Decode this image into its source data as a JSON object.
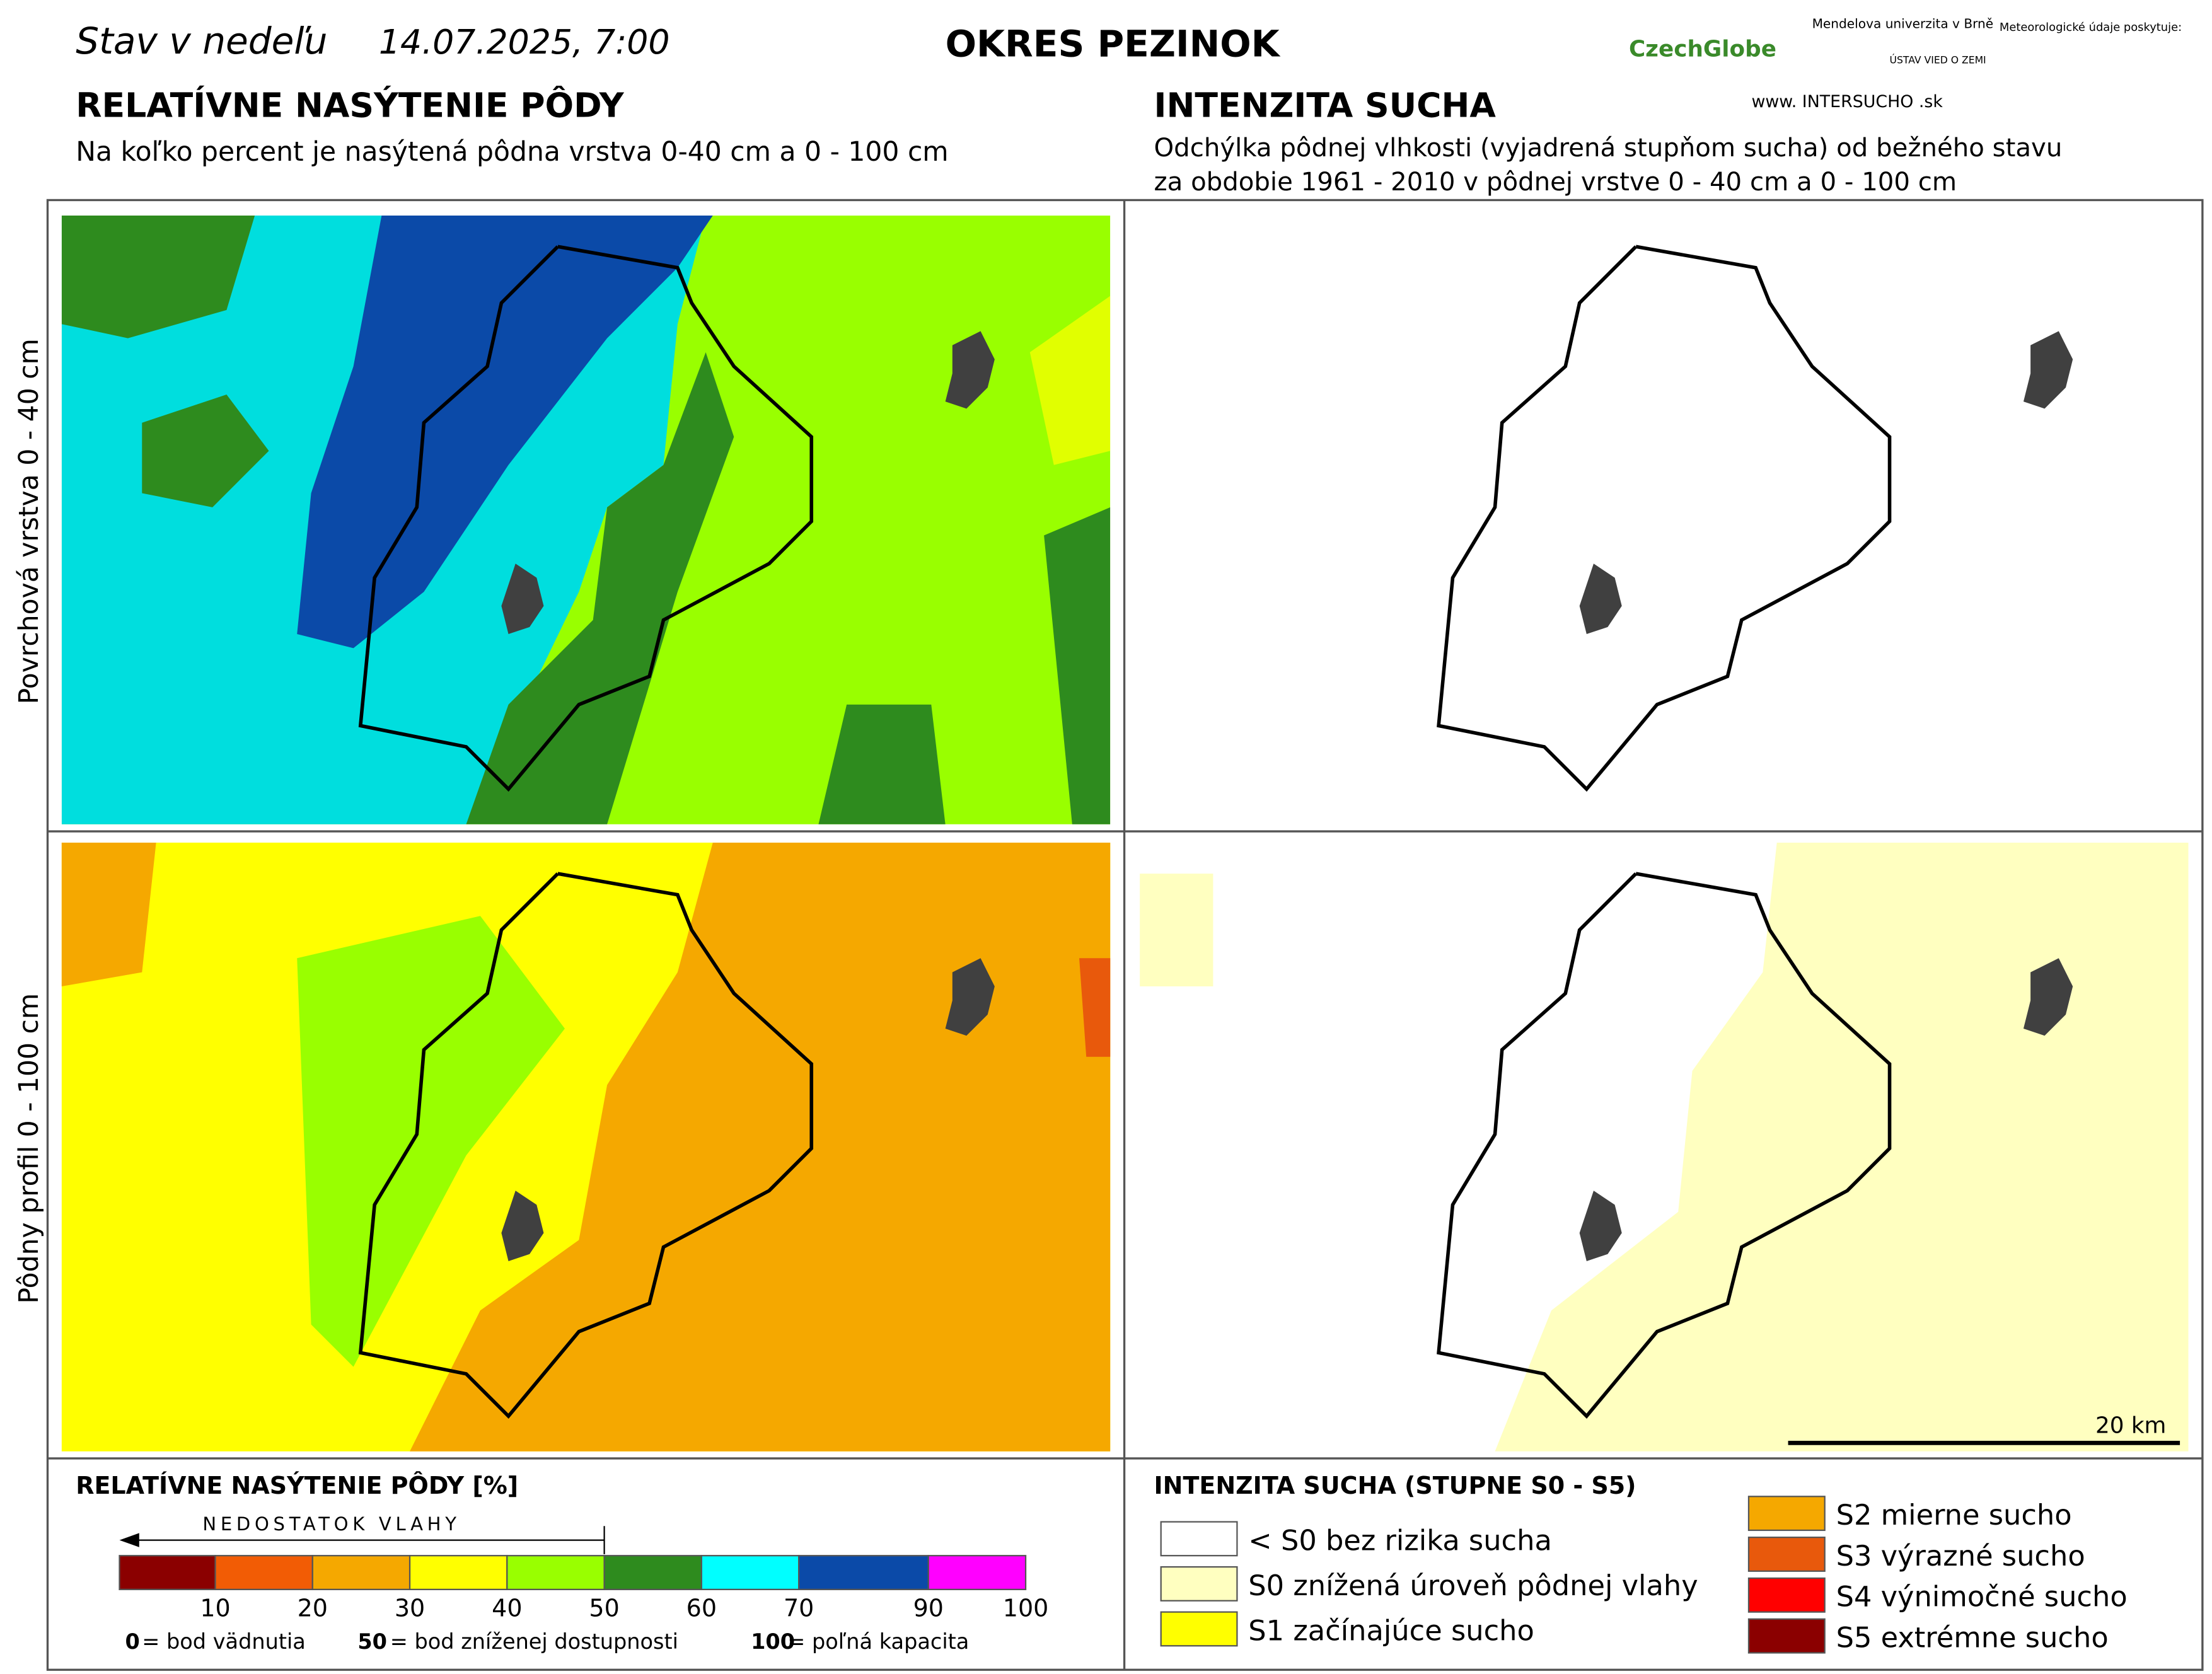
{
  "header": {
    "state_label": "Stav v nedeľu",
    "date": "14.07.2025, 7:00",
    "district": "OKRES PEZINOK",
    "logos": [
      "CzechGlobe",
      "Mendelova univerzita v Brně",
      "ÚSTAV VIED O ZEMI",
      "Meteorologické údaje poskytuje:",
      "www. INTERSUCHO .sk"
    ]
  },
  "left_section": {
    "title": "RELATÍVNE NASÝTENIE PÔDY",
    "subtitle": "Na koľko percent je nasýtená pôdna vrstva 0-40 cm a 0 - 100 cm"
  },
  "right_section": {
    "title": "INTENZITA SUCHA",
    "subtitle_lines": [
      "Odchýlka pôdnej vlhkosti (vyjadrená stupňom sucha) od bežného stavu",
      "za obdobie 1961 - 2010 v pôdnej vrstve 0 - 40 cm a 0 - 100 cm"
    ]
  },
  "row_labels": [
    "Povrchová vrstva 0 - 40 cm",
    "Pôdny profil 0 - 100 cm"
  ],
  "scale_bar": "20 km",
  "legend_left": {
    "title": "RELATÍVNE NASÝTENIE PÔDY [%]",
    "arrow_label": "NEDOSTATOK VLAHY",
    "colors": [
      "#8b0000",
      "#f25c05",
      "#f5a800",
      "#ffff00",
      "#99ff00",
      "#2e8b1e",
      "#00ffff",
      "#0b4aa8",
      "#ff00ff"
    ],
    "ticks": [
      "10",
      "20",
      "30",
      "40",
      "50",
      "60",
      "70",
      "90",
      "100"
    ],
    "notes": [
      [
        "0",
        "= bod vädnutia"
      ],
      [
        "50",
        "= bod zníženej dostupnosti"
      ],
      [
        "100",
        "= poľná kapacita"
      ]
    ]
  },
  "legend_right": {
    "title": "INTENZITA SUCHA (STUPNE S0 - S5)",
    "items": [
      {
        "label": "< S0 bez rizika sucha",
        "color": "#ffffff"
      },
      {
        "label": "S0 znížená úroveň pôdnej vlahy",
        "color": "#ffffc0"
      },
      {
        "label": "S1 začínajúce sucho",
        "color": "#ffff00"
      },
      {
        "label": "S2 mierne sucho",
        "color": "#f5a800"
      },
      {
        "label": "S3 výrazné sucho",
        "color": "#e8590c"
      },
      {
        "label": "S4 výnimočné sucho",
        "color": "#ff0000"
      },
      {
        "label": "S5 extrémne sucho",
        "color": "#8b0000"
      }
    ]
  }
}
